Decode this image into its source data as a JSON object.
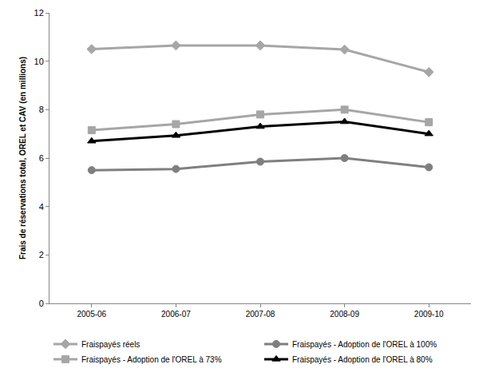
{
  "chart_data": {
    "type": "line",
    "y_label": "Frais de réservations total, OREL et CAV (en millions)",
    "categories": [
      "2005-06",
      "2006-07",
      "2007-08",
      "2008-09",
      "2009-10"
    ],
    "series": [
      {
        "name": "Fraispayés réels",
        "color": "#a6a6a6",
        "marker": "diamond",
        "line_style": "solid",
        "values": [
          10.5,
          10.65,
          10.65,
          10.48,
          9.55
        ]
      },
      {
        "name": "Fraispayés - Adoption de l'OREL à 100%",
        "color": "#7f7f7f",
        "marker": "circle",
        "line_style": "solid",
        "values": [
          5.5,
          5.55,
          5.85,
          6.0,
          5.62
        ]
      },
      {
        "name": "Fraispayés - Adoption de l'OREL à 73%",
        "color": "#a6a6a6",
        "marker": "square",
        "line_style": "solid",
        "values": [
          7.15,
          7.4,
          7.8,
          8.0,
          7.48
        ]
      },
      {
        "name": "Fraispayés - Adoption de l'OREL à 80%",
        "color": "#000000",
        "marker": "triangle-up",
        "line_style": "solid",
        "values": [
          6.7,
          6.93,
          7.3,
          7.5,
          7.0
        ]
      }
    ],
    "ylim": [
      0,
      12
    ],
    "yticks": [
      0,
      2,
      4,
      6,
      8,
      10,
      12
    ],
    "grid": false,
    "legend": "bottom"
  }
}
